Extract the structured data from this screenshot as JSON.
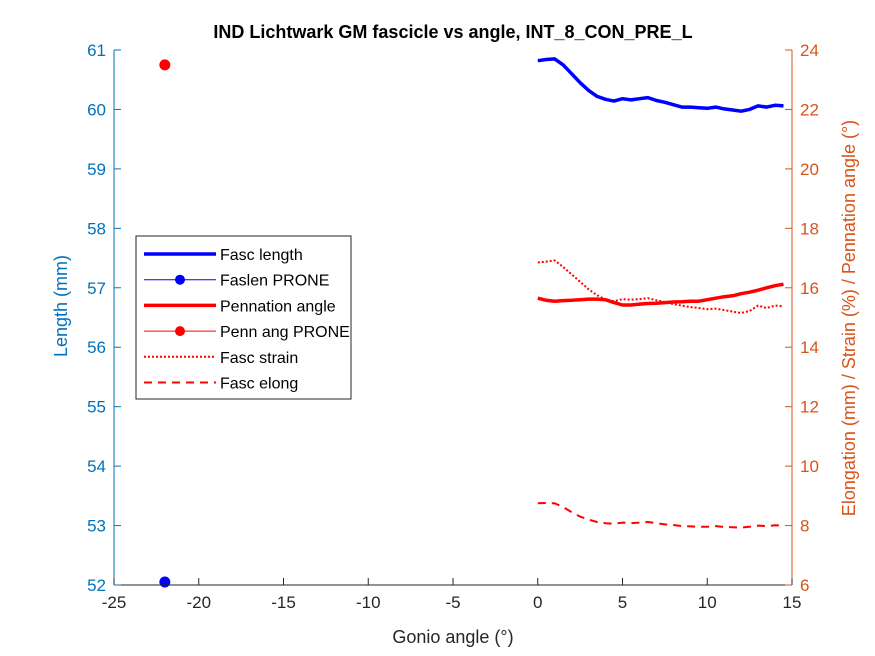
{
  "chart_data": {
    "type": "line",
    "title": "IND Lichtwark GM fascicle vs angle, INT_8_CON_PRE_L",
    "xlabel": "Gonio angle (°)",
    "ylabel_left": "Length (mm)",
    "ylabel_right": "Elongation (mm) / Strain (%) / Pennation angle (°)",
    "xlim": [
      -25,
      15
    ],
    "ylim_left": [
      52,
      61
    ],
    "ylim_right": [
      6,
      24
    ],
    "x_ticks": [
      "-25",
      "-20",
      "-15",
      "-10",
      "-5",
      "0",
      "5",
      "10",
      "15"
    ],
    "y_left_ticks": [
      "52",
      "53",
      "54",
      "55",
      "56",
      "57",
      "58",
      "59",
      "60",
      "61"
    ],
    "y_right_ticks": [
      "6",
      "8",
      "10",
      "12",
      "14",
      "16",
      "18",
      "20",
      "22",
      "24"
    ],
    "legend_position": "middle-left",
    "colors": {
      "left_axis": "#0072BD",
      "right_axis": "#D95319",
      "blue": "#0000FF",
      "red": "#FF0000"
    },
    "series": [
      {
        "name": "Fasc length",
        "axis": "left",
        "color": "#0000FF",
        "style": "thick",
        "x": [
          0,
          0.5,
          1,
          1.5,
          2,
          2.5,
          3,
          3.5,
          4,
          4.5,
          5,
          5.5,
          6,
          6.5,
          7,
          7.5,
          8,
          8.5,
          9,
          9.5,
          10,
          10.5,
          11,
          11.5,
          12,
          12.5,
          13,
          13.5,
          14,
          14.5
        ],
        "y": [
          60.82,
          60.84,
          60.85,
          60.75,
          60.6,
          60.45,
          60.32,
          60.22,
          60.17,
          60.14,
          60.18,
          60.16,
          60.18,
          60.2,
          60.15,
          60.12,
          60.08,
          60.04,
          60.04,
          60.03,
          60.02,
          60.04,
          60.01,
          59.99,
          59.97,
          60.0,
          60.06,
          60.04,
          60.07,
          60.06
        ]
      },
      {
        "name": "Faslen PRONE",
        "axis": "left",
        "color": "#0000FF",
        "style": "marker",
        "x": [
          -22
        ],
        "y": [
          52.05
        ]
      },
      {
        "name": "Pennation angle",
        "axis": "right",
        "color": "#FF0000",
        "style": "thick",
        "x": [
          0,
          0.5,
          1,
          1.5,
          2,
          2.5,
          3,
          3.5,
          4,
          4.5,
          5,
          5.5,
          6,
          6.5,
          7,
          7.5,
          8,
          8.5,
          9,
          9.5,
          10,
          10.5,
          11,
          11.5,
          12,
          12.5,
          13,
          13.5,
          14,
          14.5
        ],
        "y": [
          15.65,
          15.58,
          15.55,
          15.57,
          15.58,
          15.6,
          15.62,
          15.62,
          15.6,
          15.5,
          15.42,
          15.42,
          15.45,
          15.47,
          15.48,
          15.5,
          15.52,
          15.53,
          15.55,
          15.55,
          15.6,
          15.65,
          15.7,
          15.73,
          15.8,
          15.85,
          15.92,
          16.0,
          16.07,
          16.12
        ]
      },
      {
        "name": "Penn ang PRONE",
        "axis": "right",
        "color": "#FF0000",
        "style": "marker",
        "x": [
          -22
        ],
        "y": [
          23.5
        ]
      },
      {
        "name": "Fasc strain",
        "axis": "right",
        "color": "#FF0000",
        "style": "dotted",
        "x": [
          0,
          0.5,
          1,
          1.5,
          2,
          2.5,
          3,
          3.5,
          4,
          4.5,
          5,
          5.5,
          6,
          6.5,
          7,
          7.5,
          8,
          8.5,
          9,
          9.5,
          10,
          10.5,
          11,
          11.5,
          12,
          12.5,
          13,
          13.5,
          14,
          14.5
        ],
        "y": [
          16.85,
          16.88,
          16.92,
          16.7,
          16.45,
          16.2,
          15.95,
          15.75,
          15.6,
          15.55,
          15.62,
          15.6,
          15.62,
          15.65,
          15.58,
          15.52,
          15.45,
          15.4,
          15.35,
          15.32,
          15.28,
          15.3,
          15.25,
          15.2,
          15.15,
          15.22,
          15.4,
          15.32,
          15.4,
          15.38
        ]
      },
      {
        "name": "Fasc elong",
        "axis": "right",
        "color": "#FF0000",
        "style": "dashed",
        "x": [
          0,
          0.5,
          1,
          1.5,
          2,
          2.5,
          3,
          3.5,
          4,
          4.5,
          5,
          5.5,
          6,
          6.5,
          7,
          7.5,
          8,
          8.5,
          9,
          9.5,
          10,
          10.5,
          11,
          11.5,
          12,
          12.5,
          13,
          13.5,
          14,
          14.5
        ],
        "y": [
          8.75,
          8.76,
          8.75,
          8.62,
          8.45,
          8.3,
          8.2,
          8.12,
          8.08,
          8.06,
          8.1,
          8.08,
          8.1,
          8.12,
          8.08,
          8.04,
          8.02,
          7.98,
          7.97,
          7.96,
          7.96,
          7.98,
          7.95,
          7.94,
          7.93,
          7.96,
          8.0,
          7.98,
          8.01,
          8.0
        ]
      }
    ]
  }
}
